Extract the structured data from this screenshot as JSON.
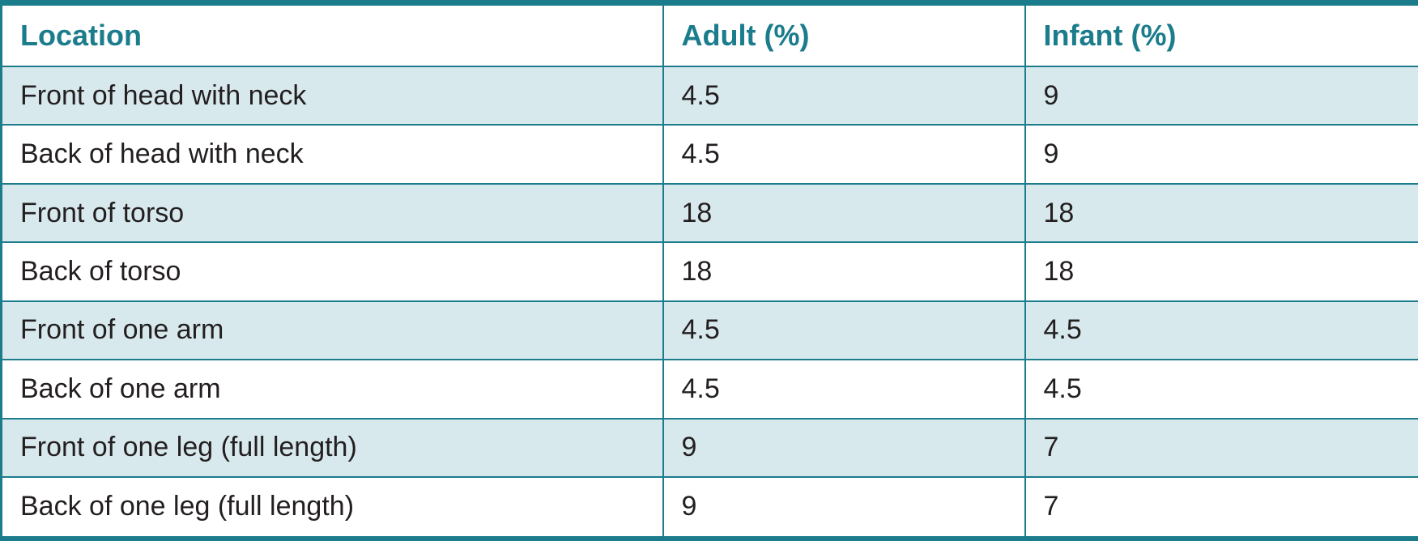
{
  "table": {
    "header": [
      "Location",
      "Adult (%)",
      "Infant (%)"
    ],
    "rows": [
      [
        "Front of head with neck",
        4.5,
        9
      ],
      [
        "Back of head with neck",
        4.5,
        9
      ],
      [
        "Front of torso",
        18,
        18
      ],
      [
        "Back of torso",
        18,
        18
      ],
      [
        "Front of one arm",
        4.5,
        4.5
      ],
      [
        "Back of one arm",
        4.5,
        4.5
      ],
      [
        "Front of one leg (full length)",
        9,
        7
      ],
      [
        "Back of one leg (full length)",
        9,
        7
      ]
    ]
  }
}
